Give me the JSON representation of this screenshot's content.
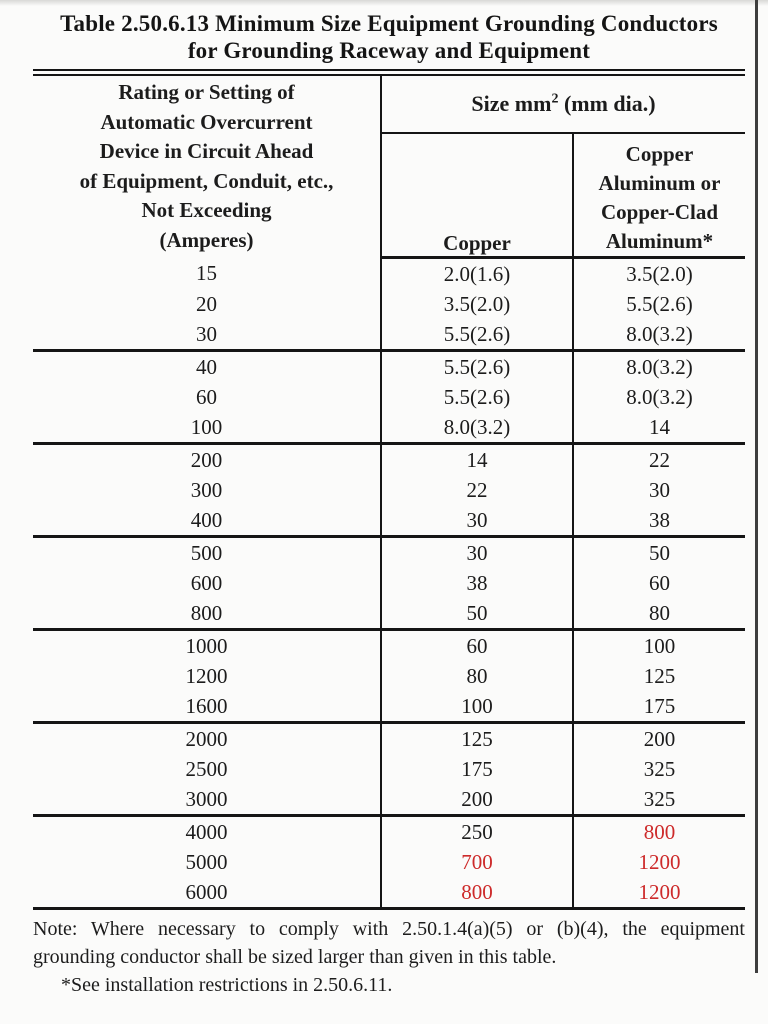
{
  "colors": {
    "red_highlight": "#cd2a2a",
    "text": "#1c1c1c",
    "rule": "#151515"
  },
  "title": {
    "line1": "Table 2.50.6.13 Minimum Size Equipment Grounding Conductors",
    "line2": "for Grounding Raceway and Equipment"
  },
  "table": {
    "col1_header_lines": [
      "Rating or Setting of",
      "Automatic Overcurrent",
      "Device in Circuit Ahead",
      "of Equipment, Conduit, etc.,",
      "Not Exceeding",
      "(Amperes)"
    ],
    "size_header": {
      "prefix": "Size mm",
      "sup": "2",
      "suffix": " (mm dia.)"
    },
    "col2_header": "Copper",
    "col3_header_lines": [
      "Copper",
      "Aluminum or",
      "Copper-Clad",
      "Aluminum*"
    ],
    "groups": [
      {
        "rows": [
          {
            "amperes": "15",
            "copper": "2.0(1.6)",
            "aluminum": "3.5(2.0)"
          },
          {
            "amperes": "20",
            "copper": "3.5(2.0)",
            "aluminum": "5.5(2.6)"
          },
          {
            "amperes": "30",
            "copper": "5.5(2.6)",
            "aluminum": "8.0(3.2)"
          }
        ]
      },
      {
        "rows": [
          {
            "amperes": "40",
            "copper": "5.5(2.6)",
            "aluminum": "8.0(3.2)"
          },
          {
            "amperes": "60",
            "copper": "5.5(2.6)",
            "aluminum": "8.0(3.2)"
          },
          {
            "amperes": "100",
            "copper": "8.0(3.2)",
            "aluminum": "14"
          }
        ]
      },
      {
        "rows": [
          {
            "amperes": "200",
            "copper": "14",
            "aluminum": "22"
          },
          {
            "amperes": "300",
            "copper": "22",
            "aluminum": "30"
          },
          {
            "amperes": "400",
            "copper": "30",
            "aluminum": "38"
          }
        ]
      },
      {
        "rows": [
          {
            "amperes": "500",
            "copper": "30",
            "aluminum": "50"
          },
          {
            "amperes": "600",
            "copper": "38",
            "aluminum": "60"
          },
          {
            "amperes": "800",
            "copper": "50",
            "aluminum": "80"
          }
        ]
      },
      {
        "rows": [
          {
            "amperes": "1000",
            "copper": "60",
            "aluminum": "100"
          },
          {
            "amperes": "1200",
            "copper": "80",
            "aluminum": "125"
          },
          {
            "amperes": "1600",
            "copper": "100",
            "aluminum": "175"
          }
        ]
      },
      {
        "rows": [
          {
            "amperes": "2000",
            "copper": "125",
            "aluminum": "200"
          },
          {
            "amperes": "2500",
            "copper": "175",
            "aluminum": "325"
          },
          {
            "amperes": "3000",
            "copper": "200",
            "aluminum": "325"
          }
        ]
      },
      {
        "rows": [
          {
            "amperes": "4000",
            "copper": "250",
            "aluminum": "800"
          },
          {
            "amperes": "5000",
            "copper": "700",
            "aluminum": "1200"
          },
          {
            "amperes": "6000",
            "copper": "800",
            "aluminum": "1200"
          }
        ]
      }
    ],
    "red_cell_paths": [
      "groups.6.rows.0.aluminum",
      "groups.6.rows.1.copper",
      "groups.6.rows.1.aluminum",
      "groups.6.rows.2.copper",
      "groups.6.rows.2.aluminum"
    ]
  },
  "notes": {
    "note_line1": "Note: Where necessary to comply with 2.50.1.4(a)(5) or (b)(4), the equipment",
    "note_line2": "grounding conductor shall be sized larger than given in this table.",
    "star_note": "*See installation restrictions in 2.50.6.11."
  }
}
